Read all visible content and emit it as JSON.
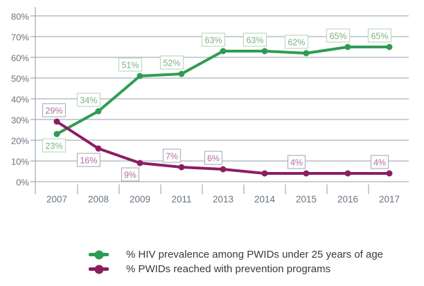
{
  "chart_data": {
    "type": "line",
    "title": "",
    "xlabel": "",
    "ylabel": "",
    "categories": [
      "2007",
      "2008",
      "2009",
      "2011",
      "2013",
      "2014",
      "2015",
      "2016",
      "2017"
    ],
    "series": [
      {
        "name": "% HIV prevalence among PWIDs under 25 years of age",
        "color": "#2f9c53",
        "label_text_color": "#7eb181",
        "label_border_color": "#bcd9bd",
        "values": [
          23,
          34,
          51,
          52,
          63,
          63,
          62,
          65,
          65
        ],
        "point_labels": [
          "23%",
          "34%",
          "51%",
          "52%",
          "63%",
          "63%",
          "62%",
          "65%",
          "65%"
        ],
        "label_side": [
          "below",
          "above",
          "above",
          "above",
          "above",
          "above",
          "above",
          "above",
          "above"
        ]
      },
      {
        "name": "% PWIDs reached with prevention programs",
        "color": "#8c1d63",
        "label_text_color": "#b26d9e",
        "label_border_color": "#a9b3bb",
        "values": [
          29,
          16,
          9,
          7,
          6,
          4,
          4,
          4,
          4
        ],
        "point_labels": [
          "29%",
          "16%",
          "9%",
          "7%",
          "6%",
          null,
          "4%",
          null,
          "4%"
        ],
        "label_side": [
          "above",
          "below",
          "below",
          "above",
          "above",
          null,
          "above",
          null,
          "above"
        ]
      }
    ],
    "ylim": [
      0,
      80
    ],
    "ytick_step": 10,
    "ytick_labels": [
      "0%",
      "10%",
      "20%",
      "30%",
      "40%",
      "50%",
      "60%",
      "70%",
      "80%"
    ],
    "grid": true,
    "legend_position": "bottom-center",
    "label_box_background": "#ffffff"
  },
  "axis": {
    "line_color": "#a6b0b9",
    "tick_text_color": "#68747f"
  },
  "legend": {
    "text_color": "#3a3a3a"
  },
  "background_color": "#ffffff"
}
